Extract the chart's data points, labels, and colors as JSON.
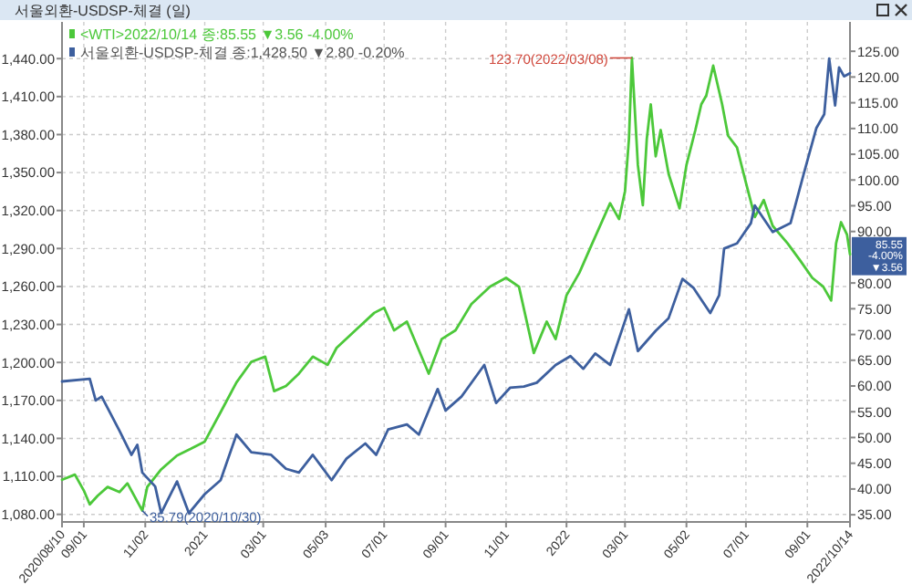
{
  "chart_data": {
    "type": "line",
    "title": "서울외환-USDSP-체결 (일)",
    "xlim": [
      "2020-08-10",
      "2022-10-14"
    ],
    "xticks": [
      {
        "value": "2020-08-10",
        "label": "2020/08/10"
      },
      {
        "value": "2020-09-01",
        "label": "09/01"
      },
      {
        "value": "2020-11-02",
        "label": "11/02"
      },
      {
        "value": "2021-01-01",
        "label": "2021"
      },
      {
        "value": "2021-03-01",
        "label": "03/01"
      },
      {
        "value": "2021-05-03",
        "label": "05/03"
      },
      {
        "value": "2021-07-01",
        "label": "07/01"
      },
      {
        "value": "2021-09-01",
        "label": "09/01"
      },
      {
        "value": "2021-11-01",
        "label": "11/01"
      },
      {
        "value": "2022-01-01",
        "label": "2022"
      },
      {
        "value": "2022-03-01",
        "label": "03/01"
      },
      {
        "value": "2022-05-02",
        "label": "05/02"
      },
      {
        "value": "2022-07-01",
        "label": "07/01"
      },
      {
        "value": "2022-09-01",
        "label": "09/01"
      },
      {
        "value": "2022-10-14",
        "label": "2022/10/14"
      }
    ],
    "ylim": [
      1074,
      1469
    ],
    "yticks": [
      {
        "value": 1080,
        "label": "1,080.00"
      },
      {
        "value": 1110,
        "label": "1,110.00"
      },
      {
        "value": 1140,
        "label": "1,140.00"
      },
      {
        "value": 1170,
        "label": "1,170.00"
      },
      {
        "value": 1200,
        "label": "1,200.00"
      },
      {
        "value": 1230,
        "label": "1,230.00"
      },
      {
        "value": 1260,
        "label": "1,260.00"
      },
      {
        "value": 1290,
        "label": "1,290.00"
      },
      {
        "value": 1320,
        "label": "1,320.00"
      },
      {
        "value": 1350,
        "label": "1,350.00"
      },
      {
        "value": 1380,
        "label": "1,380.00"
      },
      {
        "value": 1410,
        "label": "1,410.00"
      },
      {
        "value": 1440,
        "label": "1,440.00"
      }
    ],
    "y2lim": [
      33.6,
      130.7
    ],
    "y2ticks": [
      {
        "value": 35,
        "label": "35.00"
      },
      {
        "value": 40,
        "label": "40.00"
      },
      {
        "value": 45,
        "label": "45.00"
      },
      {
        "value": 50,
        "label": "50.00"
      },
      {
        "value": 55,
        "label": "55.00"
      },
      {
        "value": 60,
        "label": "60.00"
      },
      {
        "value": 65,
        "label": "65.00"
      },
      {
        "value": 70,
        "label": "70.00"
      },
      {
        "value": 75,
        "label": "75.00"
      },
      {
        "value": 80,
        "label": "80.00"
      },
      {
        "value": 90,
        "label": "90.00"
      },
      {
        "value": 95,
        "label": "95.00"
      },
      {
        "value": 100,
        "label": "100.00"
      },
      {
        "value": 105,
        "label": "105.00"
      },
      {
        "value": 110,
        "label": "110.00"
      },
      {
        "value": 115,
        "label": "115.00"
      },
      {
        "value": 120,
        "label": "120.00"
      },
      {
        "value": 125,
        "label": "125.00"
      }
    ],
    "grid": true,
    "legend": "top left",
    "line_style": "solid",
    "series": [
      {
        "name": "<WTI>2022/10/14 종:85.55 ▼3.56 -4.00%",
        "color": "#4cc83a",
        "axis": "y2",
        "x": [
          "2020-08-10",
          "2020-08-23",
          "2020-09-01",
          "2020-09-07",
          "2020-09-15",
          "2020-09-25",
          "2020-10-07",
          "2020-10-15",
          "2020-10-30",
          "2020-11-04",
          "2020-11-18",
          "2020-12-04",
          "2020-12-18",
          "2021-01-01",
          "2021-01-17",
          "2021-02-02",
          "2021-02-17",
          "2021-03-03",
          "2021-03-12",
          "2021-03-24",
          "2021-04-06",
          "2021-04-20",
          "2021-05-05",
          "2021-05-14",
          "2021-06-02",
          "2021-06-21",
          "2021-07-01",
          "2021-07-11",
          "2021-07-24",
          "2021-08-15",
          "2021-08-28",
          "2021-09-11",
          "2021-09-27",
          "2021-10-16",
          "2021-11-01",
          "2021-11-14",
          "2021-11-29",
          "2021-12-12",
          "2021-12-21",
          "2022-01-01",
          "2022-01-14",
          "2022-01-27",
          "2022-02-14",
          "2022-02-23",
          "2022-03-01",
          "2022-03-05",
          "2022-03-08",
          "2022-03-14",
          "2022-03-19",
          "2022-03-23",
          "2022-03-27",
          "2022-04-01",
          "2022-04-06",
          "2022-04-14",
          "2022-04-25",
          "2022-05-02",
          "2022-05-11",
          "2022-05-17",
          "2022-05-22",
          "2022-05-29",
          "2022-06-07",
          "2022-06-13",
          "2022-06-22",
          "2022-07-01",
          "2022-07-10",
          "2022-07-19",
          "2022-07-28",
          "2022-08-12",
          "2022-08-25",
          "2022-09-06",
          "2022-09-17",
          "2022-09-25",
          "2022-09-30",
          "2022-10-05",
          "2022-10-11",
          "2022-10-14"
        ],
        "values": [
          41.8,
          42.8,
          39.7,
          37,
          38.7,
          40.4,
          39.4,
          41.1,
          35.79,
          40.4,
          43.8,
          46.5,
          47.8,
          49.2,
          54.9,
          60.7,
          64.7,
          65.7,
          59,
          60,
          62.4,
          65.7,
          64.1,
          67.4,
          70.8,
          74.2,
          75.2,
          70.8,
          72.5,
          62.4,
          69.1,
          70.8,
          75.9,
          79.3,
          81,
          79.3,
          66.4,
          72.5,
          69.1,
          77.6,
          82,
          87.7,
          95.5,
          92.4,
          97.8,
          108,
          123.7,
          102.9,
          95.1,
          108,
          114.7,
          104.6,
          109.7,
          101.2,
          94.5,
          102.9,
          109.7,
          114.7,
          116.4,
          122.2,
          114.7,
          108.6,
          106.3,
          99.5,
          92.8,
          96.1,
          91.1,
          87.7,
          84.3,
          81,
          79.3,
          76.6,
          87.7,
          91.8,
          89.4,
          85.55
        ]
      },
      {
        "name": "서울외환-USDSP-체결 종:1,428.50 ▼2.80 -0.20%",
        "color": "#3d5f9e",
        "x": [
          "2020-08-10",
          "2020-09-07",
          "2020-09-13",
          "2020-09-19",
          "2020-10-07",
          "2020-10-19",
          "2020-10-25",
          "2020-10-30",
          "2020-11-12",
          "2020-11-18",
          "2020-12-04",
          "2020-12-16",
          "2021-01-01",
          "2021-01-17",
          "2021-02-02",
          "2021-02-17",
          "2021-03-09",
          "2021-03-24",
          "2021-04-06",
          "2021-04-20",
          "2021-05-09",
          "2021-05-24",
          "2021-06-12",
          "2021-06-23",
          "2021-07-05",
          "2021-07-24",
          "2021-08-05",
          "2021-08-24",
          "2021-09-01",
          "2021-09-17",
          "2021-10-10",
          "2021-10-22",
          "2021-11-05",
          "2021-11-19",
          "2021-12-02",
          "2021-12-21",
          "2022-01-05",
          "2022-01-18",
          "2022-01-30",
          "2022-02-14",
          "2022-03-05",
          "2022-03-14",
          "2022-04-01",
          "2022-04-14",
          "2022-04-28",
          "2022-05-09",
          "2022-05-26",
          "2022-06-04",
          "2022-06-09",
          "2022-06-22",
          "2022-07-06",
          "2022-07-10",
          "2022-07-28",
          "2022-08-15",
          "2022-08-28",
          "2022-09-10",
          "2022-09-18",
          "2022-09-23",
          "2022-09-29",
          "2022-10-03",
          "2022-10-08",
          "2022-10-14"
        ],
        "values": [
          1185,
          1187,
          1170,
          1173,
          1146,
          1127,
          1135,
          1113,
          1102,
          1081,
          1106,
          1081,
          1096,
          1107,
          1143,
          1129,
          1127,
          1116,
          1113,
          1127,
          1107,
          1124,
          1136,
          1127,
          1147,
          1151,
          1143,
          1179,
          1162,
          1173,
          1198,
          1168,
          1180,
          1181,
          1184,
          1198,
          1205,
          1195,
          1207,
          1198,
          1242,
          1209,
          1225,
          1235,
          1266,
          1259,
          1239,
          1253,
          1290,
          1294,
          1310,
          1324,
          1303,
          1310,
          1348,
          1385,
          1396,
          1440,
          1403,
          1433,
          1426,
          1428.5
        ]
      }
    ],
    "annotations": [
      "123.70(2022/03/08)",
      "35.79(2020/10/30)",
      "85.55 -4.00% ▼3.56"
    ]
  }
}
